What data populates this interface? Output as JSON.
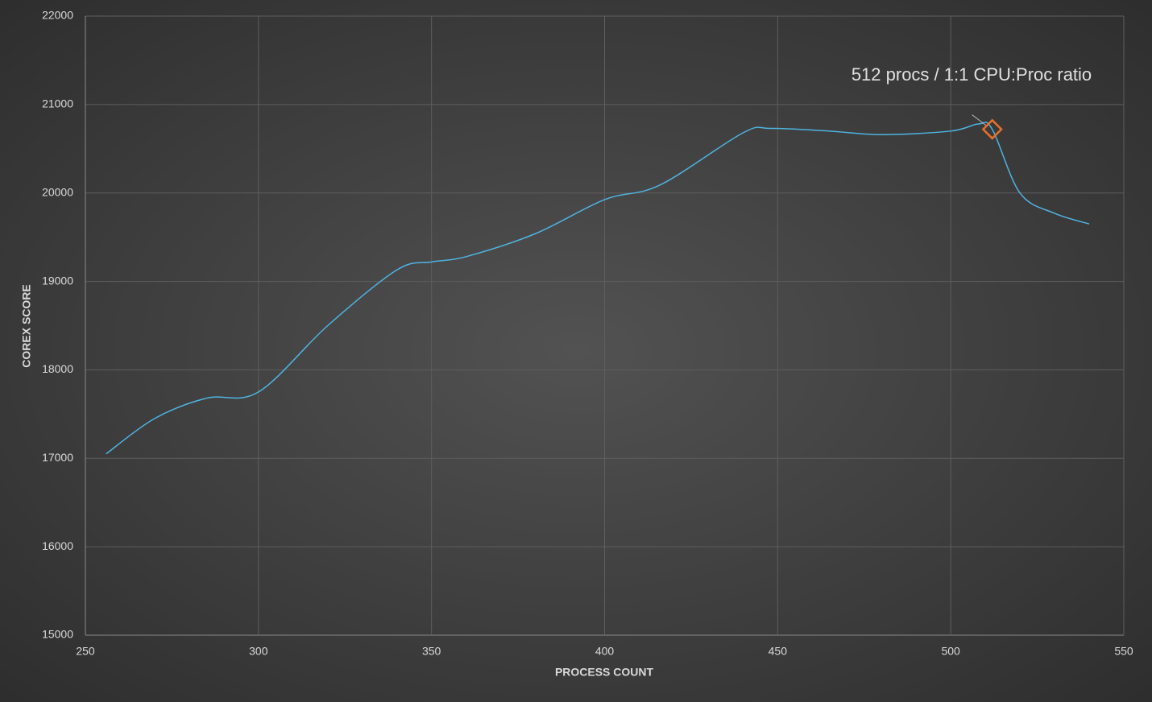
{
  "chart_data": {
    "type": "line",
    "x_label": "PROCESS COUNT",
    "y_label": "COREX SCORE",
    "x": [
      256,
      270,
      285,
      300,
      320,
      340,
      350,
      360,
      380,
      400,
      416,
      440,
      448,
      465,
      480,
      500,
      508,
      512,
      520,
      530,
      540
    ],
    "values": [
      17050,
      17450,
      17680,
      17750,
      18500,
      19130,
      19220,
      19280,
      19540,
      19925,
      20090,
      20680,
      20730,
      20700,
      20660,
      20700,
      20780,
      20720,
      20000,
      19770,
      19650
    ],
    "color": "#4fb3e0",
    "xlim": [
      250,
      550
    ],
    "xticks": [
      250,
      300,
      350,
      400,
      450,
      500,
      550
    ],
    "ylim": [
      15000,
      22000
    ],
    "yticks": [
      15000,
      16000,
      17000,
      18000,
      19000,
      20000,
      21000,
      22000
    ],
    "grid": true,
    "annotation": {
      "text": "512 procs / 1:1 CPU:Proc ratio",
      "x": 512,
      "y": 20720,
      "color": "#e8702a"
    }
  }
}
